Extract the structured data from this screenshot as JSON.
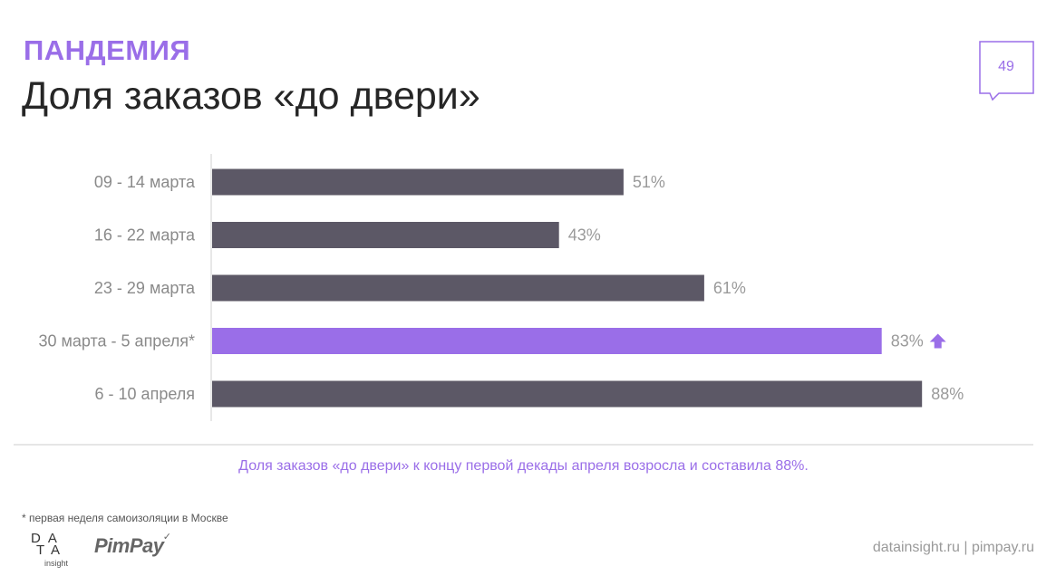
{
  "header": {
    "section": "ПАНДЕМИЯ",
    "title": "Доля заказов «до двери»",
    "page_number": "49"
  },
  "chart_data": {
    "type": "bar",
    "orientation": "horizontal",
    "categories": [
      "09 - 14 марта",
      "16 - 22 марта",
      "23 - 29 марта",
      "30 марта - 5 апреля*",
      "6 - 10 апреля"
    ],
    "values": [
      51,
      43,
      61,
      83,
      88
    ],
    "labels": [
      "51%",
      "43%",
      "61%",
      "83%",
      "88%"
    ],
    "highlight_index": 3,
    "highlight_marker": "arrow-up-icon",
    "xlim": [
      0,
      100
    ],
    "grid": false,
    "colors": {
      "bar": "#5c5866",
      "highlight": "#9a6ee8",
      "label": "#9a9a9a",
      "axis": "#e0e0e0"
    }
  },
  "caption": "Доля заказов «до двери» к концу первой декады апреля возросла и составила 88%.",
  "footnote": "* первая неделя самоизоляции в Москве",
  "footer": {
    "logo_data_line1": "DA",
    "logo_data_line2": "TA",
    "logo_data_line3": "insight",
    "logo_pimpay": "PimPay",
    "sites": "datainsight.ru  |  pimpay.ru"
  }
}
